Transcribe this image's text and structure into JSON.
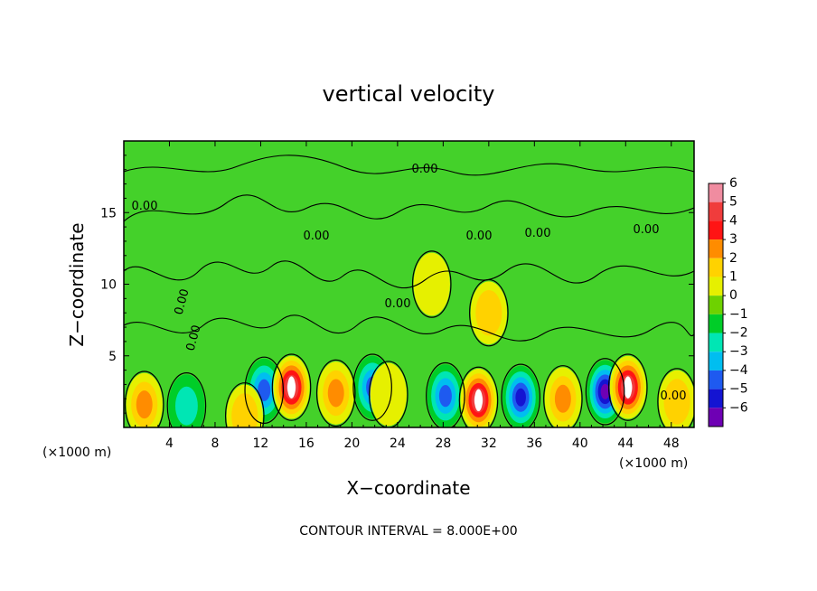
{
  "chart_data": {
    "type": "heatmap",
    "title": "vertical velocity",
    "xlabel": "X−coordinate",
    "ylabel": "Z−coordinate",
    "x_unit_left": "(×1000 m)",
    "x_unit_right": "(×1000 m)",
    "xlim": [
      0,
      50
    ],
    "ylim": [
      0,
      20
    ],
    "x_ticks": [
      4,
      8,
      12,
      16,
      20,
      24,
      28,
      32,
      36,
      40,
      44,
      48
    ],
    "x_tick_labels": [
      "4",
      "8",
      "12",
      "16",
      "20",
      "24",
      "28",
      "32",
      "36",
      "40",
      "44",
      "48"
    ],
    "y_ticks": [
      5,
      10,
      15
    ],
    "y_tick_labels": [
      "5",
      "10",
      "15"
    ],
    "colorbar": {
      "levels": [
        6,
        5,
        4,
        3,
        2,
        1,
        0,
        -1,
        -2,
        -3,
        -4,
        -5,
        -6
      ],
      "labels": [
        "6",
        "5",
        "4",
        "3",
        "2",
        "1",
        "0",
        "−1",
        "−2",
        "−3",
        "−4",
        "−5",
        "−6"
      ],
      "colors": [
        "#f08ca0",
        "#f03c3c",
        "#ff1414",
        "#ff8c00",
        "#ffd200",
        "#e6f000",
        "#6ed200",
        "#00cd28",
        "#00e6b4",
        "#00bef0",
        "#1e5af0",
        "#1414d2",
        "#6e00b4"
      ]
    },
    "contour_labels": [
      "0.00",
      "0.00",
      "0.00",
      "0.00",
      "0.00",
      "0.00",
      "0.00",
      "0.00",
      "0.00",
      "0.00"
    ],
    "contour_interval_text": "CONTOUR INTERVAL = 8.000E+00",
    "background_color": "#44d12a",
    "updrafts": [
      {
        "x": 1.8,
        "z": 1.6,
        "w": 3.0
      },
      {
        "x": 10.6,
        "z": 0.8,
        "w": 2.5
      },
      {
        "x": 14.7,
        "z": 2.8,
        "w": 6.0
      },
      {
        "x": 18.6,
        "z": 2.4,
        "w": 3.0
      },
      {
        "x": 23.2,
        "z": 2.3,
        "w": 1.5
      },
      {
        "x": 27.0,
        "z": 10.0,
        "w": 1.5
      },
      {
        "x": 31.1,
        "z": 1.9,
        "w": 6.0
      },
      {
        "x": 32.0,
        "z": 8.0,
        "w": 2.8
      },
      {
        "x": 38.5,
        "z": 2.0,
        "w": 3.0
      },
      {
        "x": 44.2,
        "z": 2.8,
        "w": 6.0
      },
      {
        "x": 48.5,
        "z": 1.8,
        "w": 2.5
      }
    ],
    "downdrafts": [
      {
        "x": 5.5,
        "z": 1.5,
        "w": -2.0
      },
      {
        "x": 12.3,
        "z": 2.6,
        "w": -4.0
      },
      {
        "x": 21.8,
        "z": 2.8,
        "w": -3.5
      },
      {
        "x": 28.2,
        "z": 2.2,
        "w": -4.0
      },
      {
        "x": 34.8,
        "z": 2.1,
        "w": -5.0
      },
      {
        "x": 42.2,
        "z": 2.5,
        "w": -5.5
      }
    ]
  }
}
